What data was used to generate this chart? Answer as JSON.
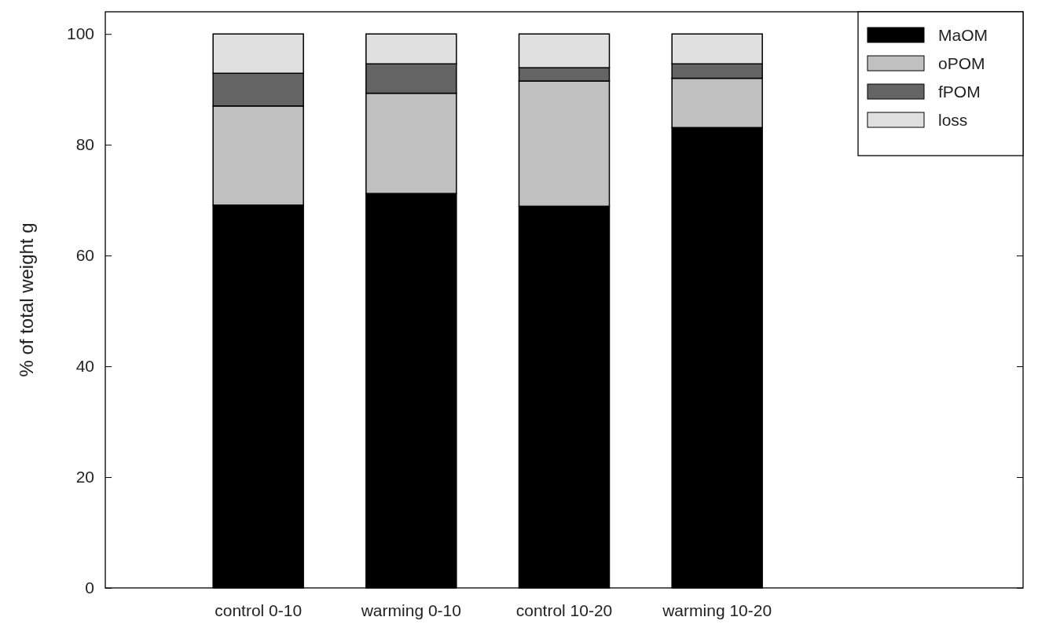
{
  "chart_data": {
    "type": "bar",
    "stacked": true,
    "ylabel": "% of total weight g",
    "categories": [
      "control 0-10",
      "warming 0-10",
      "control 10-20",
      "warming 10-20"
    ],
    "series": [
      {
        "name": "MaOM",
        "color": "#000000",
        "values": [
          69.1,
          71.2,
          68.9,
          83.1
        ]
      },
      {
        "name": "oPOM",
        "color": "#c0c0c0",
        "values": [
          17.9,
          18.1,
          22.6,
          8.9
        ]
      },
      {
        "name": "fPOM",
        "color": "#646464",
        "values": [
          5.9,
          5.3,
          2.4,
          2.6
        ]
      },
      {
        "name": "loss",
        "color": "#e0e0e0",
        "values": [
          7.1,
          5.4,
          6.1,
          5.4
        ]
      }
    ],
    "ylim": [
      0,
      104
    ],
    "yticks": [
      0,
      20,
      40,
      60,
      80,
      100
    ],
    "grid": false,
    "legend": "top right"
  }
}
